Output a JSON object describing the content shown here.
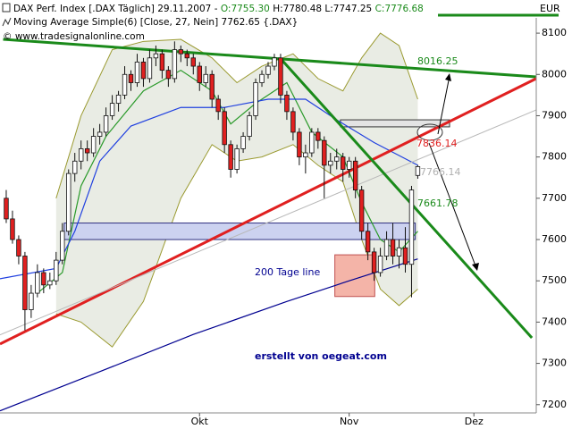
{
  "chart_data": {
    "type": "candlestick",
    "header": [
      "DAX Perf. Index [.DAX Täglich] 29.11.2007 -",
      "O:7755.30",
      "H:7780.48",
      "L:7747.25",
      "C:7776.68"
    ],
    "indicator": "Moving Average Simple(6) [Close, 27, Nein] 7762.65 {.DAX}",
    "copyright": "© www.tradesignalonline.com",
    "currency": "EUR",
    "xlim": [
      -1,
      85
    ],
    "ylim": [
      7180,
      8137
    ],
    "yticks": [
      7200,
      7300,
      7400,
      7500,
      7600,
      7700,
      7800,
      7900,
      8000,
      8100
    ],
    "xticks": [
      {
        "value": 31,
        "label": "Okt"
      },
      {
        "value": 55,
        "label": "Nov"
      },
      {
        "value": 75,
        "label": "Dez"
      }
    ],
    "up_color": "#ffffff",
    "down_color": "#e02020",
    "candles": [
      {
        "o": 7700,
        "h": 7720,
        "l": 7640,
        "c": 7650
      },
      {
        "o": 7650,
        "h": 7670,
        "l": 7590,
        "c": 7600
      },
      {
        "o": 7600,
        "h": 7610,
        "l": 7540,
        "c": 7560
      },
      {
        "o": 7560,
        "h": 7570,
        "l": 7380,
        "c": 7430
      },
      {
        "o": 7430,
        "h": 7490,
        "l": 7410,
        "c": 7470
      },
      {
        "o": 7470,
        "h": 7540,
        "l": 7460,
        "c": 7520
      },
      {
        "o": 7520,
        "h": 7530,
        "l": 7470,
        "c": 7490
      },
      {
        "o": 7490,
        "h": 7520,
        "l": 7480,
        "c": 7500
      },
      {
        "o": 7500,
        "h": 7570,
        "l": 7490,
        "c": 7550
      },
      {
        "o": 7550,
        "h": 7640,
        "l": 7540,
        "c": 7620
      },
      {
        "o": 7620,
        "h": 7770,
        "l": 7610,
        "c": 7760
      },
      {
        "o": 7760,
        "h": 7810,
        "l": 7740,
        "c": 7790
      },
      {
        "o": 7790,
        "h": 7840,
        "l": 7770,
        "c": 7820
      },
      {
        "o": 7820,
        "h": 7840,
        "l": 7790,
        "c": 7810
      },
      {
        "o": 7810,
        "h": 7870,
        "l": 7800,
        "c": 7850
      },
      {
        "o": 7850,
        "h": 7880,
        "l": 7830,
        "c": 7860
      },
      {
        "o": 7860,
        "h": 7920,
        "l": 7850,
        "c": 7900
      },
      {
        "o": 7900,
        "h": 7950,
        "l": 7890,
        "c": 7930
      },
      {
        "o": 7930,
        "h": 7960,
        "l": 7910,
        "c": 7950
      },
      {
        "o": 7950,
        "h": 8020,
        "l": 7940,
        "c": 8000
      },
      {
        "o": 8000,
        "h": 8010,
        "l": 7960,
        "c": 7980
      },
      {
        "o": 7980,
        "h": 8050,
        "l": 7970,
        "c": 8030
      },
      {
        "o": 8030,
        "h": 8040,
        "l": 7970,
        "c": 7990
      },
      {
        "o": 7990,
        "h": 8060,
        "l": 7980,
        "c": 8040
      },
      {
        "o": 8040,
        "h": 8070,
        "l": 8020,
        "c": 8050
      },
      {
        "o": 8050,
        "h": 8060,
        "l": 7990,
        "c": 8010
      },
      {
        "o": 8010,
        "h": 8020,
        "l": 7970,
        "c": 7990
      },
      {
        "o": 7990,
        "h": 8080,
        "l": 7980,
        "c": 8060
      },
      {
        "o": 8060,
        "h": 8070,
        "l": 8030,
        "c": 8050
      },
      {
        "o": 8050,
        "h": 8060,
        "l": 8020,
        "c": 8040
      },
      {
        "o": 8040,
        "h": 8050,
        "l": 8000,
        "c": 8020
      },
      {
        "o": 8020,
        "h": 8030,
        "l": 7960,
        "c": 7980
      },
      {
        "o": 7980,
        "h": 8020,
        "l": 7970,
        "c": 8000
      },
      {
        "o": 8000,
        "h": 8010,
        "l": 7920,
        "c": 7940
      },
      {
        "o": 7940,
        "h": 7950,
        "l": 7890,
        "c": 7910
      },
      {
        "o": 7910,
        "h": 7920,
        "l": 7810,
        "c": 7830
      },
      {
        "o": 7830,
        "h": 7840,
        "l": 7750,
        "c": 7770
      },
      {
        "o": 7770,
        "h": 7830,
        "l": 7760,
        "c": 7820
      },
      {
        "o": 7820,
        "h": 7860,
        "l": 7810,
        "c": 7850
      },
      {
        "o": 7850,
        "h": 7910,
        "l": 7840,
        "c": 7900
      },
      {
        "o": 7900,
        "h": 7990,
        "l": 7890,
        "c": 7980
      },
      {
        "o": 7980,
        "h": 8010,
        "l": 7970,
        "c": 8000
      },
      {
        "o": 8000,
        "h": 8030,
        "l": 7990,
        "c": 8020
      },
      {
        "o": 8020,
        "h": 8050,
        "l": 8010,
        "c": 8040
      },
      {
        "o": 8040,
        "h": 8050,
        "l": 7930,
        "c": 7950
      },
      {
        "o": 7950,
        "h": 7960,
        "l": 7890,
        "c": 7910
      },
      {
        "o": 7910,
        "h": 7920,
        "l": 7840,
        "c": 7860
      },
      {
        "o": 7860,
        "h": 7870,
        "l": 7780,
        "c": 7800
      },
      {
        "o": 7800,
        "h": 7830,
        "l": 7760,
        "c": 7810
      },
      {
        "o": 7810,
        "h": 7870,
        "l": 7800,
        "c": 7860
      },
      {
        "o": 7860,
        "h": 7870,
        "l": 7820,
        "c": 7840
      },
      {
        "o": 7840,
        "h": 7850,
        "l": 7700,
        "c": 7780
      },
      {
        "o": 7780,
        "h": 7810,
        "l": 7760,
        "c": 7790
      },
      {
        "o": 7790,
        "h": 7820,
        "l": 7770,
        "c": 7800
      },
      {
        "o": 7800,
        "h": 7810,
        "l": 7740,
        "c": 7770
      },
      {
        "o": 7770,
        "h": 7800,
        "l": 7750,
        "c": 7790
      },
      {
        "o": 7790,
        "h": 7800,
        "l": 7700,
        "c": 7720
      },
      {
        "o": 7720,
        "h": 7730,
        "l": 7600,
        "c": 7620
      },
      {
        "o": 7620,
        "h": 7640,
        "l": 7550,
        "c": 7570
      },
      {
        "o": 7570,
        "h": 7580,
        "l": 7500,
        "c": 7520
      },
      {
        "o": 7520,
        "h": 7580,
        "l": 7510,
        "c": 7560
      },
      {
        "o": 7560,
        "h": 7620,
        "l": 7550,
        "c": 7600
      },
      {
        "o": 7600,
        "h": 7640,
        "l": 7540,
        "c": 7560
      },
      {
        "o": 7560,
        "h": 7600,
        "l": 7530,
        "c": 7580
      },
      {
        "o": 7580,
        "h": 7630,
        "l": 7520,
        "c": 7540
      },
      {
        "o": 7540,
        "h": 7730,
        "l": 7460,
        "c": 7720
      },
      {
        "o": 7755.3,
        "h": 7780.48,
        "l": 7747.25,
        "c": 7776.68
      }
    ],
    "band_color": "#9a9a30",
    "band_fill": "#e9ece4",
    "bands": {
      "x": [
        8,
        12,
        17,
        22,
        28,
        33,
        37,
        41,
        46,
        50,
        54,
        57,
        60,
        63,
        66
      ],
      "upper": [
        7700,
        7900,
        8060,
        8080,
        8085,
        8040,
        7980,
        8020,
        8050,
        7990,
        7960,
        8040,
        8100,
        8070,
        7940
      ],
      "lower": [
        7420,
        7400,
        7340,
        7450,
        7700,
        7830,
        7790,
        7800,
        7830,
        7780,
        7740,
        7600,
        7480,
        7440,
        7480
      ]
    },
    "series": [
      {
        "color": "#2a9a2a",
        "x": [
          5,
          9,
          12,
          16,
          22,
          28,
          33,
          36,
          40,
          45,
          49,
          54,
          57,
          60,
          63,
          66
        ],
        "values": [
          7470,
          7520,
          7730,
          7850,
          7960,
          8010,
          7960,
          7880,
          7930,
          7980,
          7860,
          7800,
          7690,
          7600,
          7570,
          7620
        ]
      },
      {
        "color": "#2040e0",
        "x": [
          -1,
          8,
          11,
          15,
          20,
          28,
          35,
          42,
          48,
          53,
          59,
          66
        ],
        "values": [
          7505,
          7530,
          7620,
          7790,
          7875,
          7920,
          7920,
          7940,
          7940,
          7890,
          7835,
          7780
        ]
      },
      {
        "color": "#000090",
        "x": [
          -1,
          15,
          30,
          45,
          55,
          66
        ],
        "values": [
          7185,
          7280,
          7370,
          7450,
          7500,
          7553
        ]
      }
    ],
    "trendlines": [
      {
        "color": "#1a8a1a",
        "width": 3,
        "x": [
          -0.5,
          85
        ],
        "values": [
          8085,
          7994
        ]
      },
      {
        "color": "#e02020",
        "width": 3,
        "x": [
          -1,
          85
        ],
        "values": [
          7347,
          7990
        ]
      },
      {
        "color": "#b8b8b8",
        "width": 1,
        "x": [
          -1,
          85
        ],
        "values": [
          7369,
          7914
        ]
      },
      {
        "color": "#1a8a1a",
        "width": 3,
        "x": [
          44.2,
          84.3
        ],
        "values": [
          8035,
          7362
        ]
      }
    ],
    "zones": [
      {
        "fill": "#ccd2f0",
        "stroke": "#303080",
        "x": [
          9.3,
          65.6
        ],
        "values": [
          7600,
          7640
        ]
      },
      {
        "fill": "#e4e4e4",
        "stroke": "#333333",
        "x": [
          53.6,
          71.1
        ],
        "values": [
          7873,
          7890
        ]
      },
      {
        "fill": "#f4b4a8",
        "stroke": "#c05050",
        "x": [
          52.7,
          59.1
        ],
        "values": [
          7462,
          7563
        ]
      }
    ],
    "annotations": [
      {
        "text": "8016.25",
        "color": "#1a8a1a"
      },
      {
        "text": "7836.14",
        "color": "#e02020"
      },
      {
        "text": "7766.14",
        "color": "#b0b0b0"
      },
      {
        "text": "7661.78",
        "color": "#1a8a1a"
      },
      {
        "text": "200 Tage line",
        "color": "#000090"
      },
      {
        "text": "erstellt von oegeat.com",
        "color": "#000090"
      }
    ]
  }
}
